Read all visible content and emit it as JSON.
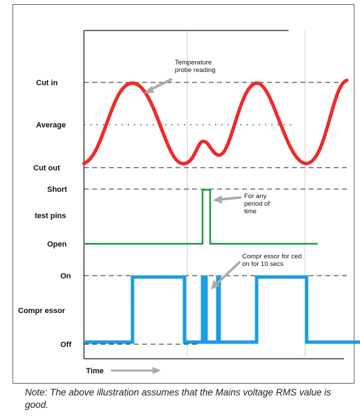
{
  "diagram": {
    "row_labels": {
      "cut_in": "Cut in",
      "average": "Average",
      "cut_out": "Cut out",
      "short": "Short",
      "test_pins": "test pins",
      "open": "Open",
      "on": "On",
      "compressor": "Compr essor",
      "off": "Off"
    },
    "time_label": "Time",
    "annotations": {
      "temperature": [
        "Temperature",
        "probe reading"
      ],
      "test_pins": [
        "For any",
        "period of",
        "time"
      ],
      "compressor": [
        "Compr essor for ced",
        "on for 10 secs"
      ]
    },
    "colors": {
      "temperature": "#ee2a2a",
      "test_pins": "#1a9c3a",
      "compressor": "#1b9de0",
      "arrow": "#aaaaaa"
    }
  },
  "note": "Note: The above illustration assumes that the Mains voltage RMS value is good."
}
